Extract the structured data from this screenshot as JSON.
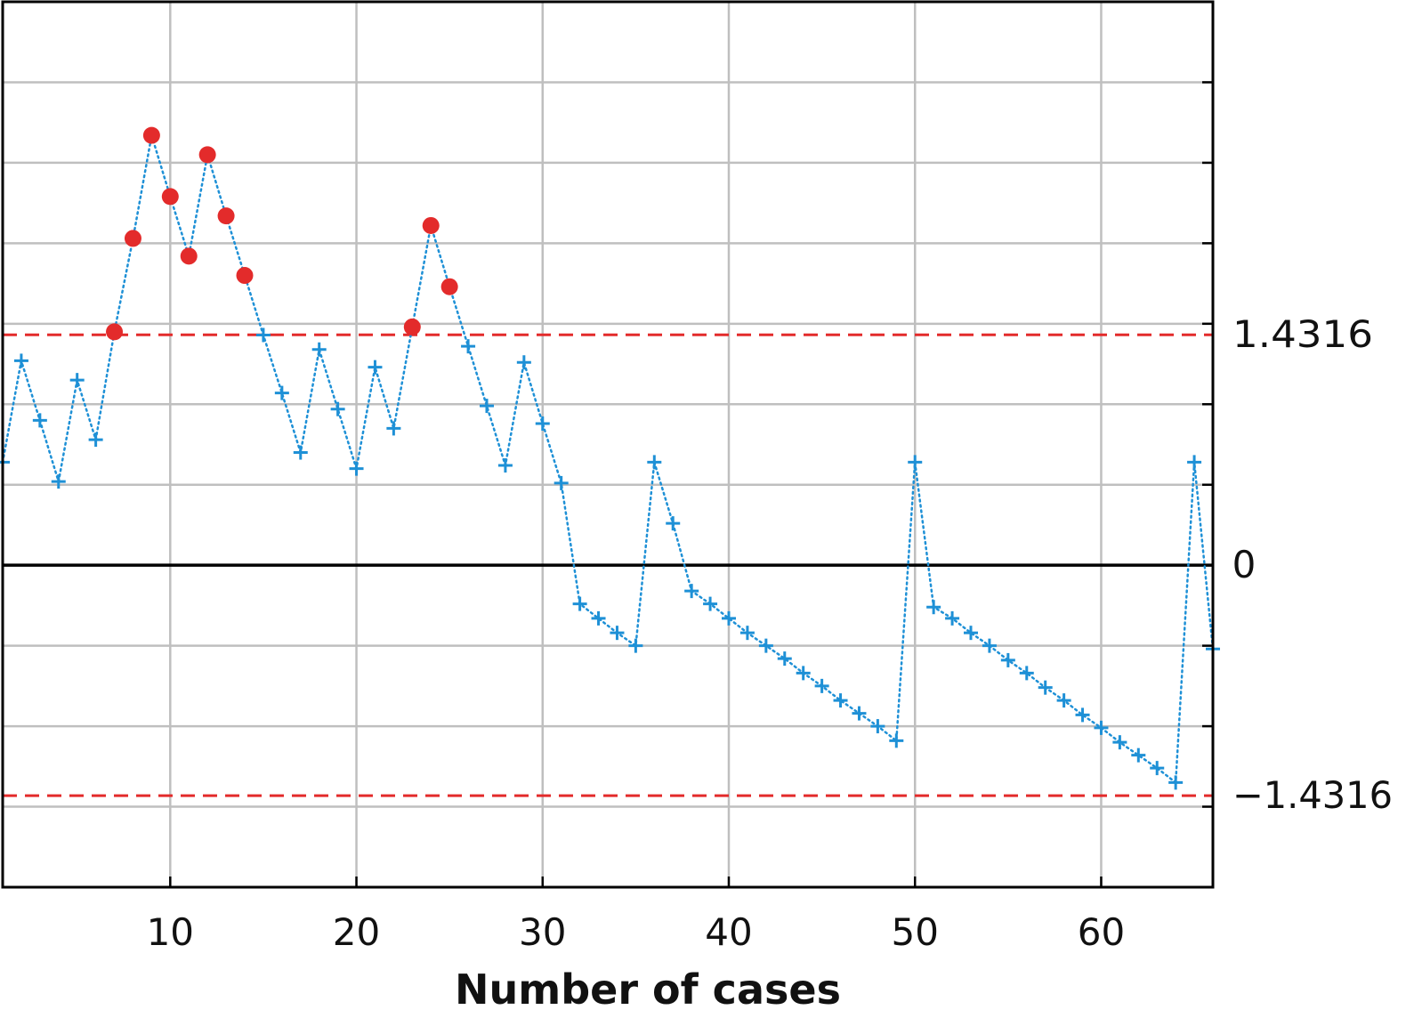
{
  "chart_data": {
    "type": "line",
    "title": "",
    "xlabel": "Number of cases",
    "ylabel": "",
    "xlim": [
      1,
      66
    ],
    "ylim": [
      -2.0,
      3.5
    ],
    "grid": true,
    "x_ticks": [
      10,
      20,
      30,
      40,
      50,
      60
    ],
    "y_ref_lines": [
      {
        "value": 1.4316,
        "label": "1.4316",
        "color": "#e32b2b",
        "style": "dashed"
      },
      {
        "value": -1.4316,
        "label": "−1.4316",
        "color": "#e32b2b",
        "style": "dashed"
      }
    ],
    "y_zero": {
      "value": 0,
      "label": "0"
    },
    "series": [
      {
        "color": "#1e90d6",
        "out_of_control_color": "#e32b2b",
        "x": [
          1,
          2,
          3,
          4,
          5,
          6,
          7,
          8,
          9,
          10,
          11,
          12,
          13,
          14,
          15,
          16,
          17,
          18,
          19,
          20,
          21,
          22,
          23,
          24,
          25,
          26,
          27,
          28,
          29,
          30,
          31,
          32,
          33,
          34,
          35,
          36,
          37,
          38,
          39,
          40,
          41,
          42,
          43,
          44,
          45,
          46,
          47,
          48,
          49,
          50,
          51,
          52,
          53,
          54,
          55,
          56,
          57,
          58,
          59,
          60,
          61,
          62,
          63,
          64,
          65,
          66
        ],
        "values": [
          0.64,
          1.27,
          0.9,
          0.52,
          1.15,
          0.78,
          1.45,
          2.03,
          2.67,
          2.29,
          1.92,
          2.55,
          2.17,
          1.8,
          1.43,
          1.07,
          0.7,
          1.34,
          0.97,
          0.6,
          1.23,
          0.85,
          1.48,
          2.11,
          1.73,
          1.36,
          0.99,
          0.62,
          1.26,
          0.88,
          0.51,
          -0.24,
          -0.33,
          -0.42,
          -0.5,
          0.64,
          0.26,
          -0.16,
          -0.24,
          -0.33,
          -0.42,
          -0.5,
          -0.58,
          -0.67,
          -0.75,
          -0.84,
          -0.92,
          -1.0,
          -1.09,
          0.64,
          -0.26,
          -0.33,
          -0.42,
          -0.5,
          -0.59,
          -0.67,
          -0.76,
          -0.84,
          -0.93,
          -1.01,
          -1.1,
          -1.18,
          -1.26,
          -1.35,
          0.64,
          -0.52
        ]
      }
    ]
  }
}
